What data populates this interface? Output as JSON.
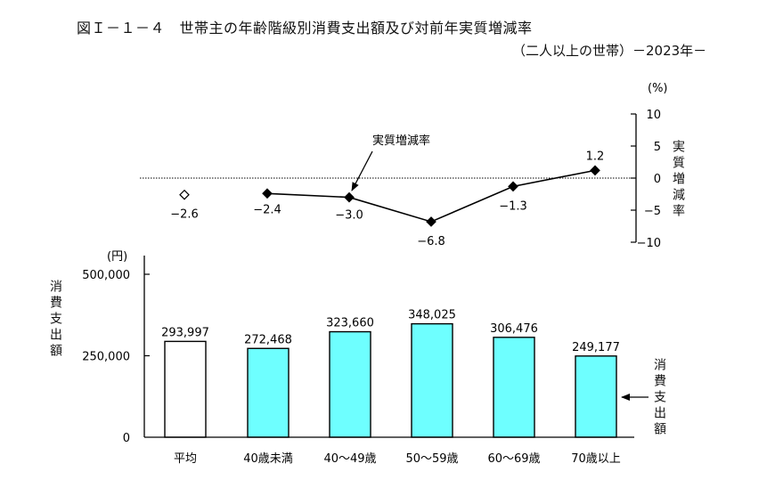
{
  "header": {
    "title": "図Ｉ－１－４　世帯主の年齢階級別消費支出額及び対前年実質増減率",
    "subtitle": "（二人以上の世帯）－2023年－"
  },
  "top_chart": {
    "unit_label": "(%)",
    "axis_title": "実質増減率",
    "callout_label": "実質増減率",
    "ticks": [
      "10",
      "5",
      "0",
      "−5",
      "−10"
    ]
  },
  "bottom_chart": {
    "unit_label": "(円)",
    "axis_title": "消費支出額",
    "callout_label": "消費支出額",
    "ticks": [
      "500,000",
      "250,000",
      "0"
    ]
  },
  "colors": {
    "bar_fill": "#6EFFFF",
    "bar_average_fill": "#FFFFFF",
    "stroke": "#000000"
  },
  "chart_data": [
    {
      "type": "line",
      "title": "対前年実質増減率",
      "ylabel": "実質増減率 (%)",
      "ylim": [
        -10,
        10
      ],
      "yticks": [
        10,
        5,
        0,
        -5,
        -10
      ],
      "y_axis_position": "right",
      "reference_line": {
        "y": 0,
        "style": "dotted"
      },
      "categories": [
        "平均",
        "40歳未満",
        "40～49歳",
        "50～59歳",
        "60～69歳",
        "70歳以上"
      ],
      "values": [
        -2.6,
        -2.4,
        -3.0,
        -6.8,
        -1.3,
        1.2
      ],
      "labels": [
        "−2.6",
        "−2.4",
        "−3.0",
        "−6.8",
        "−1.3",
        "1.2"
      ],
      "notes": "平均 shown as an unconnected hollow diamond; age groups joined by a line with filled diamonds"
    },
    {
      "type": "bar",
      "title": "世帯主の年齢階級別消費支出額",
      "ylabel": "消費支出額 (円)",
      "xlabel": "",
      "ylim": [
        0,
        500000
      ],
      "yticks": [
        0,
        250000,
        500000
      ],
      "categories": [
        "平均",
        "40歳未満",
        "40～49歳",
        "50～59歳",
        "60～69歳",
        "70歳以上"
      ],
      "values": [
        293997,
        272468,
        323660,
        348025,
        306476,
        249177
      ],
      "labels": [
        "293,997",
        "272,468",
        "323,660",
        "348,025",
        "306,476",
        "249,177"
      ],
      "grid": false,
      "legend": "none"
    }
  ]
}
